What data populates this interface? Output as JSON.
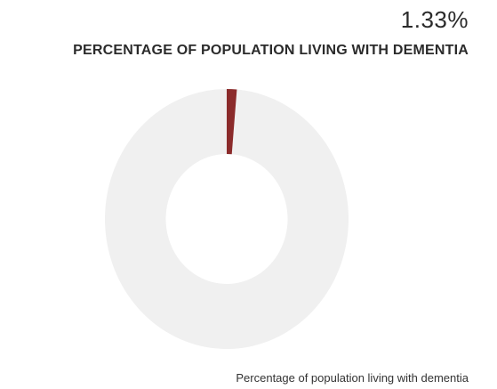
{
  "header": {
    "value_text": "1.33%",
    "title": "PERCENTAGE OF POPULATION LIVING WITH DEMENTIA"
  },
  "chart_data": {
    "type": "pie",
    "variant": "donut",
    "title": "PERCENTAGE OF POPULATION LIVING WITH DEMENTIA",
    "slices": [
      {
        "label": "Percentage of population living with dementia",
        "value": 1.33,
        "color": "#8b2b2b"
      },
      {
        "label": "",
        "value": 98.67,
        "color": "#f0f0f0"
      }
    ],
    "legend": "bottom-right"
  },
  "legend": {
    "label": "Percentage of population living with dementia"
  }
}
